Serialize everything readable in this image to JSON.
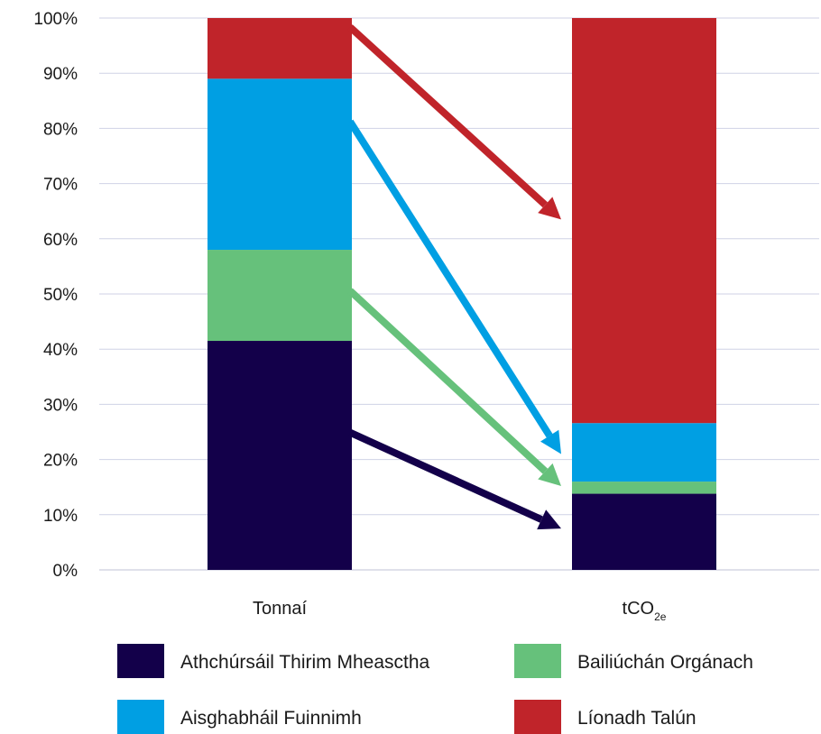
{
  "chart_data": {
    "type": "bar",
    "stacked": true,
    "categories": [
      "Tonnaí",
      "tCO2e"
    ],
    "category_labels": [
      {
        "main": "Tonnaí",
        "sub": ""
      },
      {
        "main": "tCO",
        "sub": "2e"
      }
    ],
    "yticks": [
      "0%",
      "10%",
      "20%",
      "30%",
      "40%",
      "50%",
      "60%",
      "70%",
      "80%",
      "90%",
      "100%"
    ],
    "ylim": [
      0,
      100
    ],
    "grid": true,
    "series": [
      {
        "name": "Athchúrsáil Thirim Mheasctha",
        "color": "#13004a",
        "values": [
          41.5,
          13.8
        ]
      },
      {
        "name": "Bailiúchán Orgánach",
        "color": "#66c17b",
        "values": [
          16.5,
          2.2
        ]
      },
      {
        "name": "Aisghabháil Fuinnimh",
        "color": "#009fe3",
        "values": [
          31.0,
          10.6
        ]
      },
      {
        "name": "Líonadh Talún",
        "color": "#c0242a",
        "values": [
          11.0,
          73.4
        ]
      }
    ],
    "annotations": "arrows link each segment of the first bar to the matching segment of the second bar",
    "legend_position": "bottom"
  },
  "colors": {
    "grid": "#cfd2e6",
    "axis": "#bfc2d6",
    "text": "#1a1a1a"
  }
}
